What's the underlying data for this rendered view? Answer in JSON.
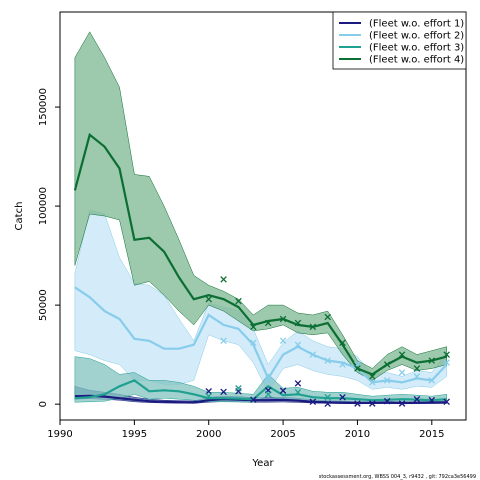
{
  "chart_data": {
    "type": "line",
    "xlabel": "Year",
    "ylabel": "Catch",
    "xlim": [
      1990,
      2017.3
    ],
    "ylim": [
      -8000,
      198000
    ],
    "x_ticks": [
      1990,
      1995,
      2000,
      2005,
      2010,
      2015
    ],
    "y_ticks": [
      0,
      50000,
      100000,
      150000
    ],
    "grid": false,
    "legend_position": "top-right",
    "footer": "stockassessment.org, WBSS 004_3, r9432 , git: 792ca3e56499",
    "years": [
      1991,
      1992,
      1993,
      1994,
      1995,
      1996,
      1997,
      1998,
      1999,
      2000,
      2001,
      2002,
      2003,
      2004,
      2005,
      2006,
      2007,
      2008,
      2009,
      2010,
      2011,
      2012,
      2013,
      2014,
      2015,
      2016
    ],
    "series": [
      {
        "name": "(Fleet w.o. effort 1)",
        "color": "#1a1a80",
        "band_color": "#4a6aa0",
        "fit": [
          4000,
          4200,
          3800,
          3000,
          2200,
          1500,
          1200,
          1000,
          900,
          2000,
          2500,
          2300,
          2000,
          2000,
          2200,
          1800,
          1200,
          900,
          800,
          600,
          700,
          800,
          600,
          700,
          800,
          900
        ],
        "lower": [
          2500,
          2800,
          2400,
          2000,
          1200,
          800,
          600,
          500,
          400,
          1000,
          1300,
          1200,
          1000,
          1000,
          1100,
          900,
          600,
          400,
          300,
          200,
          250,
          300,
          250,
          300,
          350,
          400
        ],
        "upper": [
          9000,
          7000,
          6000,
          5000,
          3500,
          2500,
          2000,
          1800,
          1600,
          3500,
          4000,
          3800,
          3300,
          3300,
          3500,
          3000,
          2200,
          1800,
          1600,
          1200,
          1300,
          1500,
          1200,
          1300,
          1500,
          1600
        ],
        "obs_years": [
          2000,
          2001,
          2002,
          2003,
          2004,
          2005,
          2006,
          2007,
          2008,
          2009,
          2010,
          2011,
          2012,
          2013,
          2014,
          2015,
          2016
        ],
        "obs": [
          6500,
          6200,
          6500,
          2200,
          7000,
          6800,
          10500,
          1200,
          200,
          3500,
          300,
          300,
          1500,
          300,
          2500,
          2000,
          1200
        ]
      },
      {
        "name": "(Fleet w.o. effort 2)",
        "color": "#87cdeb",
        "band_color": "#c6e4f7",
        "fit": [
          59000,
          54000,
          47000,
          43000,
          33000,
          32000,
          28000,
          28000,
          30000,
          45000,
          40000,
          38000,
          30000,
          13000,
          25000,
          29000,
          25000,
          22000,
          21000,
          18000,
          11000,
          12000,
          11000,
          13000,
          12000,
          20000
        ],
        "lower": [
          27000,
          25000,
          22000,
          20000,
          12000,
          12000,
          10000,
          10000,
          12000,
          35000,
          32000,
          30000,
          21000,
          6000,
          18000,
          20000,
          17000,
          15000,
          14000,
          12000,
          7500,
          8500,
          7500,
          9000,
          8500,
          14000
        ],
        "upper": [
          66000,
          98000,
          96000,
          74000,
          61000,
          60000,
          55000,
          43000,
          32000,
          51000,
          49000,
          47000,
          38000,
          20000,
          31000,
          37000,
          32000,
          29000,
          28000,
          24000,
          15000,
          16000,
          14000,
          17000,
          16000,
          26000
        ],
        "obs_years": [
          2001,
          2003,
          2004,
          2005,
          2006,
          2007,
          2008,
          2009,
          2010,
          2011,
          2012,
          2013,
          2014,
          2015,
          2016
        ],
        "obs": [
          32000,
          31000,
          12000,
          32000,
          30000,
          25000,
          22000,
          20000,
          20000,
          11000,
          12000,
          16000,
          14000,
          12000,
          21000
        ]
      },
      {
        "name": "(Fleet w.o. effort 3)",
        "color": "#20a090",
        "band_color": "#82c3c0",
        "fit": [
          3000,
          3500,
          5000,
          9000,
          12000,
          6500,
          7000,
          6500,
          5000,
          3000,
          3000,
          2800,
          2500,
          9000,
          4500,
          5000,
          3500,
          3000,
          3000,
          2500,
          2000,
          2200,
          2500,
          2300,
          2000,
          2500
        ],
        "lower": [
          1000,
          1200,
          1500,
          3000,
          5000,
          2500,
          3000,
          2500,
          2000,
          1200,
          1200,
          1100,
          1000,
          4000,
          2000,
          2200,
          1500,
          1200,
          1200,
          1000,
          800,
          900,
          1000,
          950,
          800,
          1000
        ],
        "upper": [
          24000,
          23000,
          20000,
          15000,
          16000,
          12000,
          12000,
          11000,
          9000,
          6000,
          6000,
          5500,
          5000,
          15000,
          8000,
          8500,
          6500,
          6000,
          6000,
          5000,
          4000,
          4500,
          5000,
          4500,
          4000,
          5000
        ],
        "obs_years": [
          2000,
          2002,
          2004,
          2006,
          2008
        ],
        "obs": [
          4000,
          8000,
          5000,
          6000,
          3500
        ]
      },
      {
        "name": "(Fleet w.o. effort 4)",
        "color": "#0b6e32",
        "band_color": "#7cb792",
        "fit": [
          108000,
          136000,
          130000,
          119000,
          83000,
          84000,
          77000,
          64000,
          53000,
          55000,
          53000,
          49000,
          40000,
          42000,
          43000,
          40000,
          39000,
          41000,
          30000,
          18000,
          15000,
          20000,
          24000,
          21000,
          22000,
          24000
        ],
        "lower": [
          70000,
          96000,
          95000,
          93000,
          60000,
          62000,
          55000,
          47000,
          40000,
          50000,
          47000,
          42000,
          37000,
          38000,
          40000,
          36000,
          35000,
          36000,
          25000,
          16000,
          12000,
          17000,
          20000,
          17000,
          18000,
          20000
        ],
        "upper": [
          175000,
          188000,
          175000,
          160000,
          116000,
          115000,
          100000,
          83000,
          65000,
          60000,
          57000,
          53000,
          45000,
          50000,
          50000,
          46000,
          45000,
          47000,
          35000,
          22000,
          18000,
          25000,
          29000,
          25000,
          27000,
          29000
        ],
        "obs_years": [
          2000,
          2001,
          2002,
          2003,
          2004,
          2005,
          2006,
          2007,
          2008,
          2009,
          2010,
          2011,
          2012,
          2013,
          2014,
          2015,
          2016
        ],
        "obs": [
          53000,
          63000,
          52000,
          39000,
          41000,
          43000,
          41000,
          39000,
          44000,
          31000,
          18000,
          14000,
          20000,
          25000,
          18000,
          22000,
          25000
        ]
      }
    ]
  }
}
